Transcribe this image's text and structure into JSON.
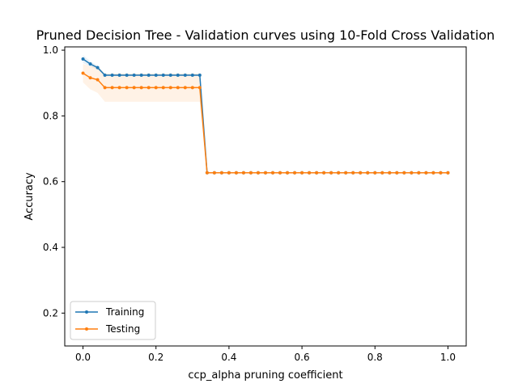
{
  "chart_data": {
    "type": "line",
    "title": "Pruned Decision Tree - Validation curves using 10-Fold Cross Validation",
    "xlabel": "ccp_alpha pruning coefficient",
    "ylabel": "Accuracy",
    "xlim": [
      -0.05,
      1.05
    ],
    "ylim": [
      0.1,
      1.01
    ],
    "xticks": [
      0.0,
      0.2,
      0.4,
      0.6,
      0.8,
      1.0
    ],
    "yticks": [
      0.2,
      0.4,
      0.6,
      0.8,
      1.0
    ],
    "legend_position": "lower-left",
    "grid": false,
    "x": [
      0.0,
      0.02,
      0.04,
      0.06,
      0.08,
      0.1,
      0.12,
      0.14,
      0.16,
      0.18,
      0.2,
      0.22,
      0.24,
      0.26,
      0.28,
      0.3,
      0.32,
      0.34,
      0.36,
      0.38,
      0.4,
      0.42,
      0.44,
      0.46,
      0.48,
      0.5,
      0.52,
      0.54,
      0.56,
      0.58,
      0.6,
      0.62,
      0.64,
      0.66,
      0.68,
      0.7,
      0.72,
      0.74,
      0.76,
      0.78,
      0.8,
      0.82,
      0.84,
      0.86,
      0.88,
      0.9,
      0.92,
      0.94,
      0.96,
      0.98,
      1.0
    ],
    "series": [
      {
        "name": "Training",
        "color": "#1f77b4",
        "values": [
          0.973,
          0.958,
          0.947,
          0.924,
          0.924,
          0.924,
          0.924,
          0.924,
          0.924,
          0.924,
          0.924,
          0.924,
          0.924,
          0.924,
          0.924,
          0.924,
          0.924,
          0.627,
          0.627,
          0.627,
          0.627,
          0.627,
          0.627,
          0.627,
          0.627,
          0.627,
          0.627,
          0.627,
          0.627,
          0.627,
          0.627,
          0.627,
          0.627,
          0.627,
          0.627,
          0.627,
          0.627,
          0.627,
          0.627,
          0.627,
          0.627,
          0.627,
          0.627,
          0.627,
          0.627,
          0.627,
          0.627,
          0.627,
          0.627,
          0.627,
          0.627
        ],
        "band": [
          0.012,
          0.008,
          0.006,
          0.003,
          0.003,
          0.003,
          0.003,
          0.003,
          0.003,
          0.003,
          0.003,
          0.003,
          0.003,
          0.003,
          0.003,
          0.003,
          0.003,
          0.002,
          0.002,
          0.002,
          0.002,
          0.002,
          0.002,
          0.002,
          0.002,
          0.002,
          0.002,
          0.002,
          0.002,
          0.002,
          0.002,
          0.002,
          0.002,
          0.002,
          0.002,
          0.002,
          0.002,
          0.002,
          0.002,
          0.002,
          0.002,
          0.002,
          0.002,
          0.002,
          0.002,
          0.002,
          0.002,
          0.002,
          0.002,
          0.002,
          0.002
        ]
      },
      {
        "name": "Testing",
        "color": "#ff7f0e",
        "values": [
          0.93,
          0.916,
          0.91,
          0.886,
          0.886,
          0.886,
          0.886,
          0.886,
          0.886,
          0.886,
          0.886,
          0.886,
          0.886,
          0.886,
          0.886,
          0.886,
          0.886,
          0.627,
          0.627,
          0.627,
          0.627,
          0.627,
          0.627,
          0.627,
          0.627,
          0.627,
          0.627,
          0.627,
          0.627,
          0.627,
          0.627,
          0.627,
          0.627,
          0.627,
          0.627,
          0.627,
          0.627,
          0.627,
          0.627,
          0.627,
          0.627,
          0.627,
          0.627,
          0.627,
          0.627,
          0.627,
          0.627,
          0.627,
          0.627,
          0.627,
          0.627
        ],
        "band": [
          0.028,
          0.035,
          0.04,
          0.043,
          0.043,
          0.043,
          0.043,
          0.043,
          0.043,
          0.043,
          0.043,
          0.043,
          0.043,
          0.043,
          0.043,
          0.043,
          0.043,
          0.002,
          0.002,
          0.002,
          0.002,
          0.002,
          0.002,
          0.002,
          0.002,
          0.002,
          0.002,
          0.002,
          0.002,
          0.002,
          0.002,
          0.002,
          0.002,
          0.002,
          0.002,
          0.002,
          0.002,
          0.002,
          0.002,
          0.002,
          0.002,
          0.002,
          0.002,
          0.002,
          0.002,
          0.002,
          0.002,
          0.002,
          0.002,
          0.002,
          0.002
        ]
      }
    ]
  }
}
